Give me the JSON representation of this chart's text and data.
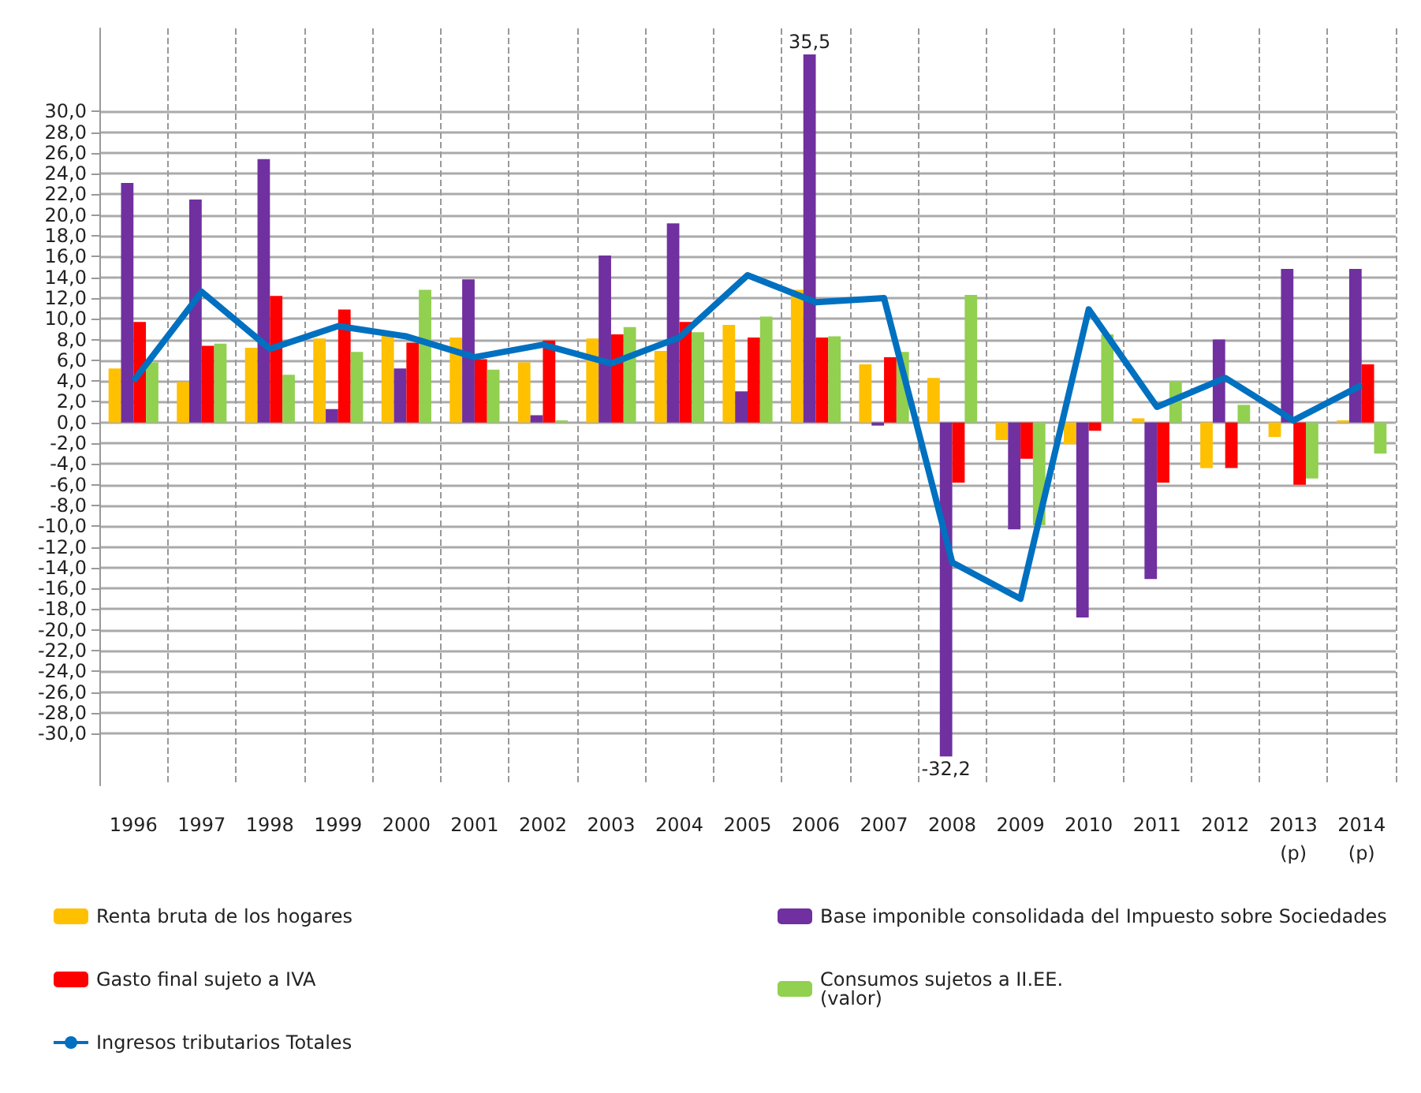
{
  "chart_data": {
    "type": "bar",
    "categories": [
      "1996",
      "1997",
      "1998",
      "1999",
      "2000",
      "2001",
      "2002",
      "2003",
      "2004",
      "2005",
      "2006",
      "2007",
      "2008",
      "2009",
      "2010",
      "2011",
      "2012",
      "2013\n(p)",
      "2014\n(p)"
    ],
    "series": [
      {
        "name": "Renta bruta de los hogares",
        "color": "#ffc000",
        "values": [
          5.2,
          3.9,
          7.2,
          8.1,
          8.8,
          8.2,
          5.8,
          8.1,
          6.9,
          9.4,
          12.8,
          5.6,
          4.3,
          -1.7,
          -2.1,
          0.4,
          -4.4,
          -1.4,
          0.2
        ]
      },
      {
        "name": "Base imponible consolidada del Impuesto sobre Sociedades",
        "color": "#7030a0",
        "values": [
          23.1,
          21.5,
          25.4,
          1.3,
          5.2,
          13.8,
          0.7,
          16.1,
          19.2,
          3.0,
          35.5,
          -0.3,
          -32.2,
          -10.3,
          -18.8,
          -15.1,
          8.0,
          14.8,
          14.8
        ],
        "value_labels": [
          null,
          null,
          null,
          null,
          null,
          null,
          null,
          null,
          null,
          null,
          "35,5",
          null,
          "-32,2",
          null,
          null,
          null,
          null,
          null,
          null
        ]
      },
      {
        "name": "Gasto final sujeto a IVA",
        "color": "#ff0000",
        "values": [
          9.7,
          7.4,
          12.2,
          10.9,
          7.7,
          6.1,
          7.9,
          8.5,
          9.7,
          8.2,
          8.2,
          6.3,
          -5.8,
          -3.5,
          -0.8,
          -5.8,
          -4.4,
          -6.0,
          5.6
        ]
      },
      {
        "name": "Consumos sujetos a II.EE.\n(valor)",
        "color": "#92d050",
        "values": [
          5.8,
          7.6,
          4.6,
          6.8,
          12.8,
          5.1,
          0.2,
          9.2,
          8.7,
          10.2,
          8.3,
          6.8,
          12.3,
          -9.9,
          8.5,
          4.0,
          1.7,
          -5.4,
          -3.0
        ]
      },
      {
        "name": "Ingresos tributarios Totales",
        "type": "line",
        "color": "#0070c0",
        "marker": "none",
        "line_style": "solid",
        "values": [
          4.0,
          12.6,
          7.1,
          9.3,
          8.3,
          6.3,
          7.5,
          5.7,
          8.2,
          14.2,
          11.6,
          12.0,
          -13.5,
          -17.0,
          10.9,
          1.5,
          4.3,
          0.2,
          3.6
        ]
      }
    ],
    "ylim": [
      -35,
      38
    ],
    "yticks": [
      {
        "value": -30,
        "label": "-30,0"
      },
      {
        "value": -28,
        "label": "-28,0"
      },
      {
        "value": -26,
        "label": "-26,0"
      },
      {
        "value": -24,
        "label": "-24,0"
      },
      {
        "value": -22,
        "label": "-22,0"
      },
      {
        "value": -20,
        "label": "-20,0"
      },
      {
        "value": -18,
        "label": "-18,0"
      },
      {
        "value": -16,
        "label": "-16,0"
      },
      {
        "value": -14,
        "label": "-14,0"
      },
      {
        "value": -12,
        "label": "-12,0"
      },
      {
        "value": -10,
        "label": "-10,0"
      },
      {
        "value": -8,
        "label": "-8,0"
      },
      {
        "value": -6,
        "label": "-6,0"
      },
      {
        "value": -4,
        "label": "-4,0"
      },
      {
        "value": -2,
        "label": "-2,0"
      },
      {
        "value": 0,
        "label": "0,0"
      },
      {
        "value": 2,
        "label": "2,0"
      },
      {
        "value": 4,
        "label": "4,0"
      },
      {
        "value": 6,
        "label": "6,0"
      },
      {
        "value": 8,
        "label": "8,0"
      },
      {
        "value": 10,
        "label": "10,0"
      },
      {
        "value": 12,
        "label": "12,0"
      },
      {
        "value": 14,
        "label": "14,0"
      },
      {
        "value": 16,
        "label": "16,0"
      },
      {
        "value": 18,
        "label": "18,0"
      },
      {
        "value": 20,
        "label": "20,0"
      },
      {
        "value": 22,
        "label": "22,0"
      },
      {
        "value": 24,
        "label": "24,0"
      },
      {
        "value": 26,
        "label": "26,0"
      },
      {
        "value": 28,
        "label": "28,0"
      },
      {
        "value": 30,
        "label": "30,0"
      }
    ],
    "grid": true,
    "legend": "bottom"
  }
}
